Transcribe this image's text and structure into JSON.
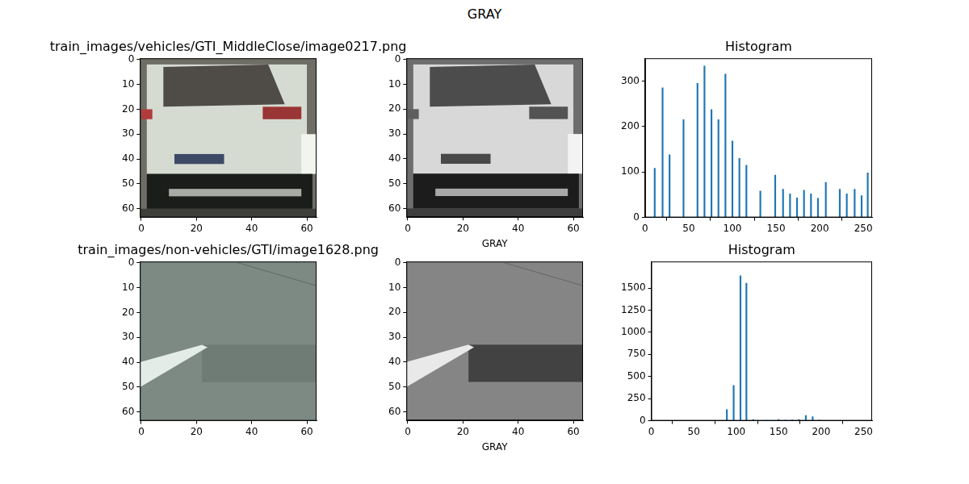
{
  "suptitle": "GRAY",
  "chart_data": [
    {
      "type": "image",
      "title": "train_images/vehicles/GTI_MiddleClose/image0217.png",
      "xlim": [
        -0.5,
        63.5
      ],
      "ylim": [
        63.5,
        -0.5
      ],
      "xticks": [
        0,
        20,
        40,
        60
      ],
      "yticks": [
        0,
        10,
        20,
        30,
        40,
        50,
        60
      ],
      "grid": false
    },
    {
      "type": "image",
      "x_label": "GRAY",
      "xlim": [
        -0.5,
        63.5
      ],
      "ylim": [
        63.5,
        -0.5
      ],
      "xticks": [
        0,
        20,
        40,
        60
      ],
      "yticks": [
        0,
        10,
        20,
        30,
        40,
        50,
        60
      ],
      "grid": false
    },
    {
      "type": "bar",
      "title": "Histogram",
      "x": [
        11,
        20,
        28,
        44,
        60,
        68,
        76,
        84,
        92,
        100,
        108,
        116,
        132,
        149,
        158,
        166,
        174,
        182,
        190,
        198,
        207,
        223,
        231,
        240,
        248,
        255
      ],
      "values": [
        108,
        285,
        138,
        215,
        295,
        333,
        237,
        215,
        315,
        168,
        130,
        115,
        58,
        93,
        62,
        52,
        43,
        60,
        52,
        42,
        77,
        62,
        52,
        62,
        48,
        98
      ],
      "xlim": [
        0,
        260
      ],
      "ylim": [
        0,
        350
      ],
      "xticks": [
        0,
        50,
        100,
        150,
        200,
        250
      ],
      "yticks": [
        0,
        100,
        200,
        300
      ],
      "color": "#1f77b4",
      "grid": false
    },
    {
      "type": "image",
      "title": "train_images/non-vehicles/GTI/image1628.png",
      "xlim": [
        -0.5,
        63.5
      ],
      "ylim": [
        63.5,
        -0.5
      ],
      "xticks": [
        0,
        20,
        40,
        60
      ],
      "yticks": [
        0,
        10,
        20,
        30,
        40,
        50,
        60
      ],
      "grid": false
    },
    {
      "type": "image",
      "x_label": "GRAY",
      "xlim": [
        -0.5,
        63.5
      ],
      "ylim": [
        63.5,
        -0.5
      ],
      "xticks": [
        0,
        20,
        40,
        60
      ],
      "yticks": [
        0,
        10,
        20,
        30,
        40,
        50,
        60
      ],
      "grid": false
    },
    {
      "type": "bar",
      "title": "Histogram",
      "x": [
        89,
        97,
        105,
        112,
        120,
        135,
        150,
        158,
        166,
        174,
        182,
        190,
        198
      ],
      "values": [
        125,
        400,
        1640,
        1555,
        15,
        5,
        15,
        8,
        10,
        15,
        60,
        45,
        8
      ],
      "xlim": [
        0,
        260
      ],
      "ylim": [
        0,
        1800
      ],
      "xticks": [
        0,
        50,
        100,
        150,
        200,
        250
      ],
      "yticks": [
        0,
        250,
        500,
        750,
        1000,
        1250,
        1500
      ],
      "color": "#1f77b4",
      "grid": false
    }
  ]
}
